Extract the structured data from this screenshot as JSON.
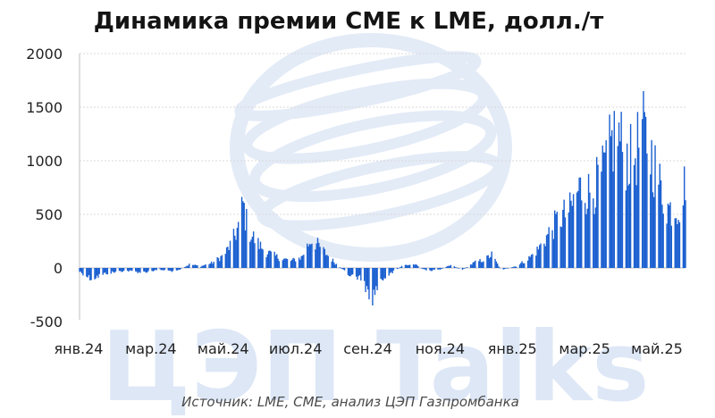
{
  "chart_data": {
    "type": "bar",
    "title": "Динамика премии CME к LME, долл./т",
    "source": "Источник: LME, CME, анализ ЦЭП Газпромбанка",
    "watermark": "ЦЭП Talks",
    "xlabel": "",
    "ylabel": "",
    "ylim": [
      -500,
      2000
    ],
    "yticks": [
      2000,
      1500,
      1000,
      500,
      0,
      -500
    ],
    "xticks": [
      "янв.24",
      "мар.24",
      "май.24",
      "июл.24",
      "сен.24",
      "ноя.24",
      "янв.25",
      "мар.25",
      "май.25"
    ],
    "grid": true,
    "bar_color": "#1a5fd0",
    "gridline_color": "#d9d9d9",
    "watermark_color": "#dde7f6",
    "anchors": [
      {
        "date": "2024-01-02",
        "value": -40
      },
      {
        "date": "2024-01-12",
        "value": -120
      },
      {
        "date": "2024-01-25",
        "value": -60
      },
      {
        "date": "2024-02-10",
        "value": -30
      },
      {
        "date": "2024-02-25",
        "value": -50
      },
      {
        "date": "2024-03-10",
        "value": -20
      },
      {
        "date": "2024-03-25",
        "value": -40
      },
      {
        "date": "2024-04-05",
        "value": 40
      },
      {
        "date": "2024-04-15",
        "value": 20
      },
      {
        "date": "2024-04-25",
        "value": 60
      },
      {
        "date": "2024-05-05",
        "value": 150
      },
      {
        "date": "2024-05-12",
        "value": 300
      },
      {
        "date": "2024-05-18",
        "value": 500
      },
      {
        "date": "2024-05-21",
        "value": 720
      },
      {
        "date": "2024-05-25",
        "value": 450
      },
      {
        "date": "2024-06-01",
        "value": 300
      },
      {
        "date": "2024-06-10",
        "value": 180
      },
      {
        "date": "2024-06-20",
        "value": 120
      },
      {
        "date": "2024-07-01",
        "value": 80
      },
      {
        "date": "2024-07-10",
        "value": 120
      },
      {
        "date": "2024-07-18",
        "value": 320
      },
      {
        "date": "2024-07-25",
        "value": 250
      },
      {
        "date": "2024-08-01",
        "value": 150
      },
      {
        "date": "2024-08-10",
        "value": 30
      },
      {
        "date": "2024-08-20",
        "value": -80
      },
      {
        "date": "2024-09-01",
        "value": -120
      },
      {
        "date": "2024-09-07",
        "value": -380
      },
      {
        "date": "2024-09-15",
        "value": -150
      },
      {
        "date": "2024-09-25",
        "value": -60
      },
      {
        "date": "2024-10-05",
        "value": 30
      },
      {
        "date": "2024-10-15",
        "value": 40
      },
      {
        "date": "2024-10-25",
        "value": -30
      },
      {
        "date": "2024-11-05",
        "value": -20
      },
      {
        "date": "2024-11-15",
        "value": 30
      },
      {
        "date": "2024-11-25",
        "value": -20
      },
      {
        "date": "2024-12-05",
        "value": 60
      },
      {
        "date": "2024-12-15",
        "value": 100
      },
      {
        "date": "2024-12-20",
        "value": 150
      },
      {
        "date": "2024-12-28",
        "value": -20
      },
      {
        "date": "2025-01-10",
        "value": 20
      },
      {
        "date": "2025-01-20",
        "value": 100
      },
      {
        "date": "2025-01-28",
        "value": 200
      },
      {
        "date": "2025-02-05",
        "value": 350
      },
      {
        "date": "2025-02-15",
        "value": 550
      },
      {
        "date": "2025-02-25",
        "value": 650
      },
      {
        "date": "2025-03-05",
        "value": 900
      },
      {
        "date": "2025-03-15",
        "value": 850
      },
      {
        "date": "2025-03-25",
        "value": 1050
      },
      {
        "date": "2025-04-02",
        "value": 1400
      },
      {
        "date": "2025-04-06",
        "value": 1570
      },
      {
        "date": "2025-04-12",
        "value": 1300
      },
      {
        "date": "2025-04-20",
        "value": 1200
      },
      {
        "date": "2025-04-28",
        "value": 1550
      },
      {
        "date": "2025-05-05",
        "value": 1300
      },
      {
        "date": "2025-05-12",
        "value": 1000
      },
      {
        "date": "2025-05-18",
        "value": 700
      },
      {
        "date": "2025-05-25",
        "value": 650
      },
      {
        "date": "2025-06-01",
        "value": 720
      },
      {
        "date": "2025-06-04",
        "value": 1040
      }
    ]
  }
}
